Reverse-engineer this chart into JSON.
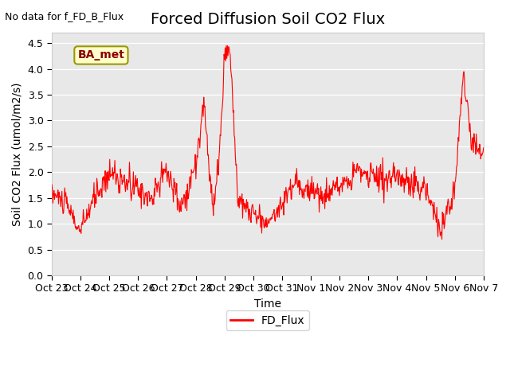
{
  "title": "Forced Diffusion Soil CO2 Flux",
  "ylabel": "Soil CO2 Flux (umol/m2/s)",
  "xlabel": "Time",
  "no_data_text": "No data for f_FD_B_Flux",
  "legend_label": "FD_Flux",
  "line_color": "red",
  "background_color": "#e8e8e8",
  "ylim": [
    0.0,
    4.7
  ],
  "yticks": [
    0.0,
    0.5,
    1.0,
    1.5,
    2.0,
    2.5,
    3.0,
    3.5,
    4.0,
    4.5
  ],
  "x_tick_labels": [
    "Oct 23",
    "Oct 24",
    "Oct 25",
    "Oct 26",
    "Oct 27",
    "Oct 28",
    "Oct 29",
    "Oct 30",
    "Oct 31",
    "Nov 1",
    "Nov 2",
    "Nov 3",
    "Nov 4",
    "Nov 5",
    "Nov 6",
    "Nov 7"
  ],
  "ba_met_label": "BA_met",
  "title_fontsize": 14,
  "label_fontsize": 10,
  "tick_fontsize": 9
}
